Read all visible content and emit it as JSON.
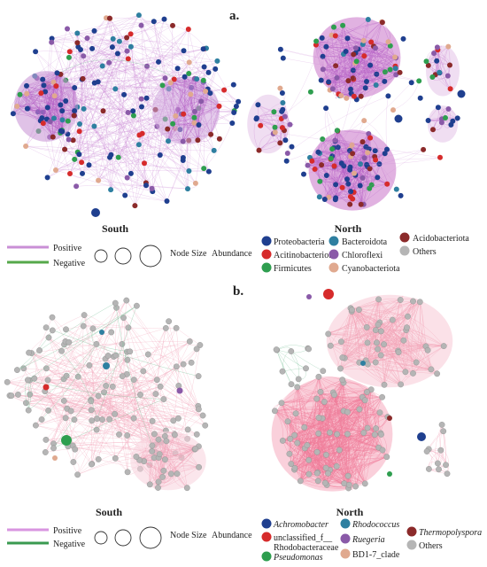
{
  "panels": [
    {
      "letter": "a.",
      "south_title": "South",
      "north_title": "North",
      "legend": {
        "positive": "Positive",
        "negative": "Negative",
        "node_size": "Node Size",
        "abundance": "Abundance",
        "taxa": [
          {
            "name": "Proteobacteria",
            "color": "#1f3f8f"
          },
          {
            "name": "Bacteroidota",
            "color": "#2e7fa0"
          },
          {
            "name": "Acidobacteriota",
            "color": "#8b2a2a"
          },
          {
            "name": "Acitinobacteriota",
            "color": "#d62b2b"
          },
          {
            "name": "Chloroflexi",
            "color": "#8a5aa8"
          },
          {
            "name": "Firmicutes",
            "color": "#2e9e4f"
          },
          {
            "name": "Cyanobacteriota",
            "color": "#e0a98f"
          },
          {
            "name": "Others",
            "color": "#b5b5b5"
          }
        ]
      }
    },
    {
      "letter": "b.",
      "south_title": "South",
      "north_title": "North",
      "legend": {
        "positive": "Positive",
        "negative": "Negative",
        "node_size": "Node Size",
        "abundance": "Abundance",
        "taxa": [
          {
            "name": "Achromobacter",
            "color": "#1f3f8f",
            "italic": true
          },
          {
            "name": "Rhodococcus",
            "color": "#2e7fa0",
            "italic": true
          },
          {
            "name": "Thermopolyspora",
            "color": "#8b2a2a",
            "italic": true
          },
          {
            "name": "unclassified_f__",
            "color": "#d62b2b",
            "italic": false
          },
          {
            "name": "Rhodobacteraceae",
            "color": "",
            "italic": false
          },
          {
            "name": "Ruegeria",
            "color": "#8a5aa8",
            "italic": true
          },
          {
            "name": "Others",
            "color": "#b5b5b5",
            "italic": false
          },
          {
            "name": "Pseudomonas",
            "color": "#2e9e4f",
            "italic": true
          },
          {
            "name": "BD1-7_clade",
            "color": "#e0a98f",
            "italic": false
          }
        ]
      }
    }
  ],
  "colors": {
    "positive_line": "#c98fd6",
    "negative_line": "#55a84a",
    "positive_line_b": "#d895e0",
    "negative_line_b": "#3a9a50",
    "edge_pink": "#f2a0b5",
    "edge_purple": "#c77fd0",
    "edge_green": "#7cc29a",
    "node_gray": "#b5b5b5"
  }
}
